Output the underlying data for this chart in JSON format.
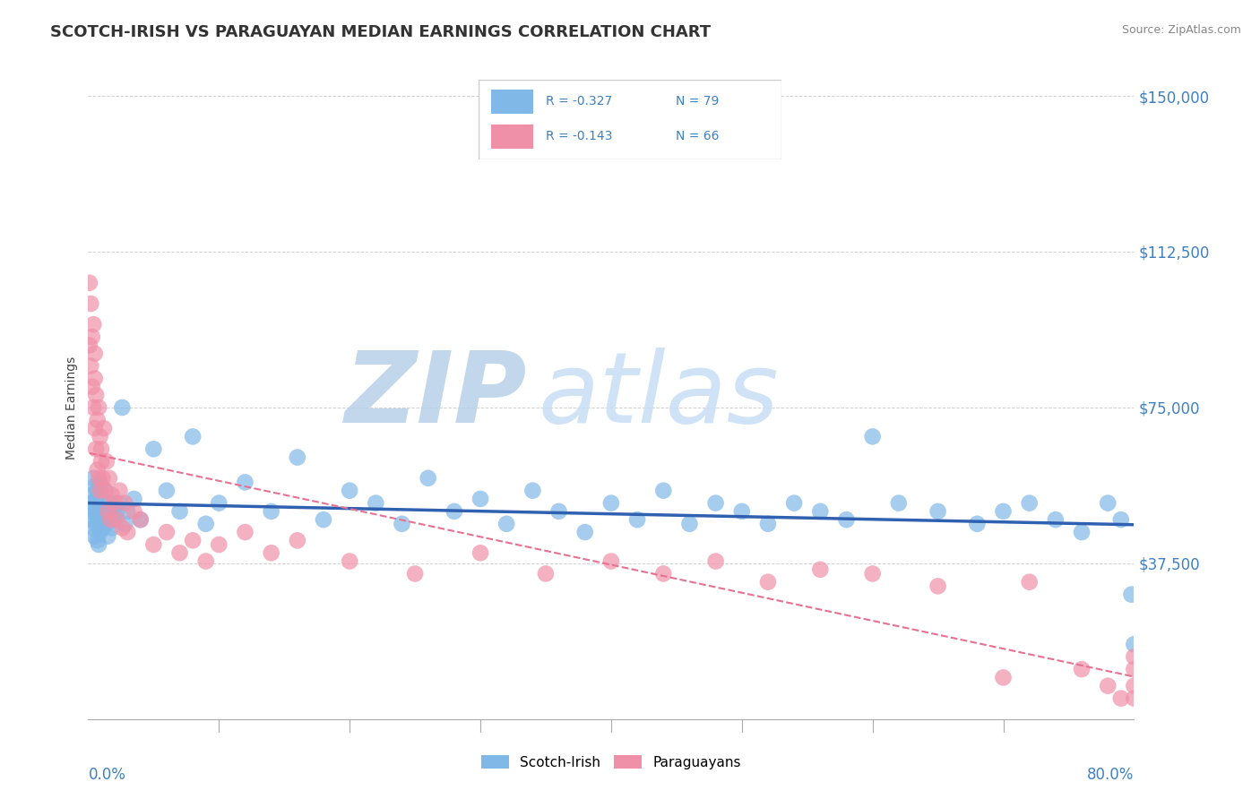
{
  "title": "SCOTCH-IRISH VS PARAGUAYAN MEDIAN EARNINGS CORRELATION CHART",
  "source_text": "Source: ZipAtlas.com",
  "ylabel": "Median Earnings",
  "xlim": [
    0.0,
    0.8
  ],
  "ylim": [
    0,
    150000
  ],
  "yticks": [
    0,
    37500,
    75000,
    112500,
    150000
  ],
  "ytick_labels": [
    "",
    "$37,500",
    "$75,000",
    "$112,500",
    "$150,000"
  ],
  "xtick_left_label": "0.0%",
  "xtick_right_label": "80.0%",
  "legend_entries": [
    {
      "label_r": "R = -0.327",
      "label_n": "N = 79",
      "color": "#a8c8f0"
    },
    {
      "label_r": "R = -0.143",
      "label_n": "N = 66",
      "color": "#f5b8c8"
    }
  ],
  "legend_bottom": [
    "Scotch-Irish",
    "Paraguayans"
  ],
  "scatter_blue_color": "#80b8e8",
  "scatter_pink_color": "#f090a8",
  "trendline_blue_color": "#3060b0",
  "trendline_pink_color": "#e87090",
  "watermark_zip_color": "#c0d8f0",
  "watermark_atlas_color": "#a8c8e8",
  "axis_color": "#4080c0",
  "grid_color": "#d0d0d0",
  "title_fontsize": 13,
  "scotch_irish_x": [
    0.001,
    0.002,
    0.003,
    0.003,
    0.004,
    0.004,
    0.005,
    0.005,
    0.005,
    0.006,
    0.006,
    0.007,
    0.007,
    0.007,
    0.008,
    0.008,
    0.009,
    0.009,
    0.01,
    0.01,
    0.011,
    0.012,
    0.013,
    0.014,
    0.015,
    0.016,
    0.017,
    0.018,
    0.019,
    0.02,
    0.022,
    0.024,
    0.026,
    0.028,
    0.03,
    0.035,
    0.04,
    0.05,
    0.06,
    0.07,
    0.08,
    0.09,
    0.1,
    0.12,
    0.14,
    0.16,
    0.18,
    0.2,
    0.22,
    0.24,
    0.26,
    0.28,
    0.3,
    0.32,
    0.34,
    0.36,
    0.38,
    0.4,
    0.42,
    0.44,
    0.46,
    0.48,
    0.5,
    0.52,
    0.54,
    0.56,
    0.58,
    0.6,
    0.62,
    0.65,
    0.68,
    0.7,
    0.72,
    0.74,
    0.76,
    0.78,
    0.79,
    0.798,
    0.8
  ],
  "scotch_irish_y": [
    50000,
    52000,
    48000,
    54000,
    46000,
    58000,
    44000,
    50000,
    56000,
    47000,
    53000,
    43000,
    49000,
    55000,
    42000,
    51000,
    45000,
    57000,
    48000,
    52000,
    46000,
    50000,
    55000,
    47000,
    44000,
    52000,
    49000,
    46000,
    51000,
    48000,
    50000,
    52000,
    75000,
    47000,
    50000,
    53000,
    48000,
    65000,
    55000,
    50000,
    68000,
    47000,
    52000,
    57000,
    50000,
    63000,
    48000,
    55000,
    52000,
    47000,
    58000,
    50000,
    53000,
    47000,
    55000,
    50000,
    45000,
    52000,
    48000,
    55000,
    47000,
    52000,
    50000,
    47000,
    52000,
    50000,
    48000,
    68000,
    52000,
    50000,
    47000,
    50000,
    52000,
    48000,
    45000,
    52000,
    48000,
    30000,
    18000
  ],
  "paraguayan_x": [
    0.001,
    0.001,
    0.002,
    0.002,
    0.003,
    0.003,
    0.004,
    0.004,
    0.005,
    0.005,
    0.005,
    0.006,
    0.006,
    0.007,
    0.007,
    0.008,
    0.008,
    0.009,
    0.009,
    0.01,
    0.01,
    0.011,
    0.012,
    0.013,
    0.014,
    0.015,
    0.016,
    0.017,
    0.018,
    0.02,
    0.022,
    0.024,
    0.026,
    0.028,
    0.03,
    0.035,
    0.04,
    0.05,
    0.06,
    0.07,
    0.08,
    0.09,
    0.1,
    0.12,
    0.14,
    0.16,
    0.2,
    0.25,
    0.3,
    0.35,
    0.4,
    0.44,
    0.48,
    0.52,
    0.56,
    0.6,
    0.65,
    0.7,
    0.72,
    0.76,
    0.78,
    0.79,
    0.8,
    0.8,
    0.8,
    0.8
  ],
  "paraguayan_y": [
    90000,
    105000,
    85000,
    100000,
    92000,
    80000,
    95000,
    75000,
    88000,
    82000,
    70000,
    78000,
    65000,
    72000,
    60000,
    75000,
    58000,
    68000,
    55000,
    65000,
    62000,
    58000,
    70000,
    55000,
    62000,
    50000,
    58000,
    48000,
    54000,
    52000,
    48000,
    55000,
    46000,
    52000,
    45000,
    50000,
    48000,
    42000,
    45000,
    40000,
    43000,
    38000,
    42000,
    45000,
    40000,
    43000,
    38000,
    35000,
    40000,
    35000,
    38000,
    35000,
    38000,
    33000,
    36000,
    35000,
    32000,
    10000,
    33000,
    12000,
    8000,
    5000,
    15000,
    12000,
    8000,
    5000
  ]
}
